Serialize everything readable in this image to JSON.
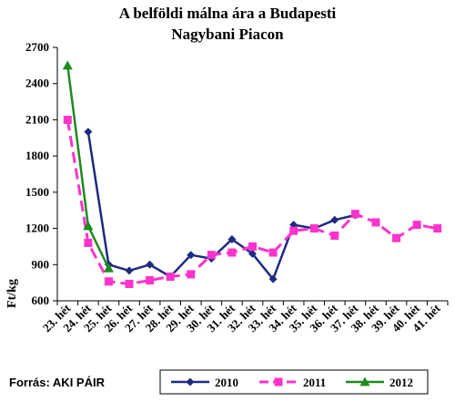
{
  "chart_data": {
    "type": "line",
    "title_line1": "A belföldi málna ára a Budapesti",
    "title_line2": "Nagybani Piacon",
    "ylabel": "Ft/kg",
    "ylim": [
      600,
      2700
    ],
    "yticks": [
      600,
      900,
      1200,
      1500,
      1800,
      2100,
      2400,
      2700
    ],
    "grid": false,
    "legend_position": "bottom",
    "source": "Forrás: AKI PÁIR",
    "categories": [
      "23. hét",
      "24. hét",
      "25. hét",
      "26. hét",
      "27. hét",
      "28. hét",
      "29. hét",
      "30. hét",
      "31. hét",
      "32. hét",
      "33. hét",
      "34. hét",
      "35. hét",
      "36. hét",
      "37. hét",
      "38. hét",
      "39. hét",
      "40. hét",
      "41. hét"
    ],
    "series": [
      {
        "name": "2010",
        "color": "#1f2a80",
        "marker": "diamond",
        "dash": "solid",
        "values": [
          null,
          2000,
          900,
          850,
          900,
          800,
          980,
          950,
          1110,
          990,
          780,
          1230,
          1200,
          1270,
          1310,
          null,
          null,
          null,
          null
        ]
      },
      {
        "name": "2011",
        "color": "#ff33cc",
        "marker": "square",
        "dash": "dashed",
        "values": [
          2100,
          1080,
          760,
          740,
          770,
          800,
          820,
          980,
          1000,
          1050,
          1000,
          1180,
          1200,
          1140,
          1320,
          1250,
          1120,
          1230,
          1200
        ]
      },
      {
        "name": "2012",
        "color": "#1e8a1e",
        "marker": "triangle",
        "dash": "solid",
        "values": [
          2550,
          1220,
          870,
          null,
          null,
          null,
          null,
          null,
          null,
          null,
          null,
          null,
          null,
          null,
          null,
          null,
          null,
          null,
          null
        ]
      }
    ]
  }
}
